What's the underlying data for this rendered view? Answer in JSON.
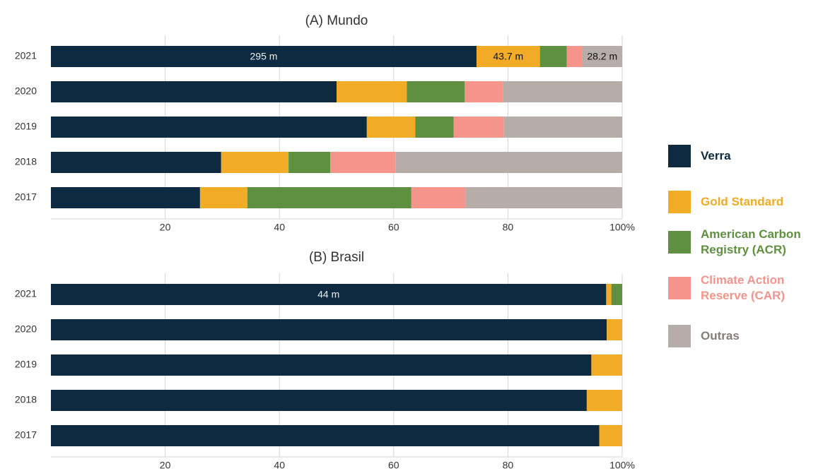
{
  "chart_data": [
    {
      "type": "bar",
      "orientation": "horizontal",
      "stacked": true,
      "title": "(A) Mundo",
      "categories": [
        "2021",
        "2020",
        "2019",
        "2018",
        "2017"
      ],
      "series": [
        {
          "name": "Verra",
          "color": "#0d2a40",
          "values": [
            74.5,
            50.0,
            55.3,
            29.8,
            26.1
          ]
        },
        {
          "name": "Gold Standard",
          "color": "#f2ab27",
          "values": [
            11.1,
            12.3,
            8.5,
            11.8,
            8.3
          ]
        },
        {
          "name": "American Carbon Registry (ACR)",
          "color": "#5f9040",
          "values": [
            4.7,
            10.1,
            6.7,
            7.3,
            28.7
          ]
        },
        {
          "name": "Climate Action Reserve (CAR)",
          "color": "#f4948a",
          "values": [
            2.7,
            6.7,
            8.8,
            11.4,
            9.5
          ]
        },
        {
          "name": "Outras",
          "color": "#b6ada8",
          "values": [
            7.0,
            20.9,
            20.7,
            39.7,
            27.4
          ]
        }
      ],
      "annotations": [
        {
          "text": "295 m",
          "series": "Verra",
          "category": "2021"
        },
        {
          "text": "43.7 m",
          "series": "Gold Standard",
          "category": "2021"
        },
        {
          "text": "28.2 m",
          "series": "Outras",
          "category": "2021"
        }
      ],
      "xlim": [
        0,
        100
      ],
      "xticks": [
        20,
        40,
        60,
        80,
        {
          "value": 100,
          "label": "100%"
        }
      ],
      "grid": true
    },
    {
      "type": "bar",
      "orientation": "horizontal",
      "stacked": true,
      "title": "(B) Brasil",
      "categories": [
        "2021",
        "2020",
        "2019",
        "2018",
        "2017"
      ],
      "series": [
        {
          "color": "#0d2a40",
          "values": [
            97.2,
            97.3,
            94.6,
            93.8,
            96.0
          ]
        },
        {
          "color": "#f2ab27",
          "values": [
            0.9,
            2.7,
            5.4,
            6.2,
            4.0
          ]
        },
        {
          "color": "#5f9040",
          "values": [
            1.9,
            0,
            0,
            0,
            0
          ]
        },
        {
          "color": "#f4948a",
          "values": [
            0,
            0,
            0,
            0,
            0
          ]
        },
        {
          "color": "#b6ada8",
          "values": [
            0,
            0,
            0,
            0,
            0
          ]
        }
      ],
      "annotations": [
        {
          "text": "44 m",
          "series": 0,
          "category": "2021"
        }
      ],
      "xlim": [
        0,
        100
      ],
      "xticks": [
        20,
        40,
        60,
        80,
        {
          "value": 100,
          "label": "100%"
        }
      ],
      "grid": true
    }
  ]
}
